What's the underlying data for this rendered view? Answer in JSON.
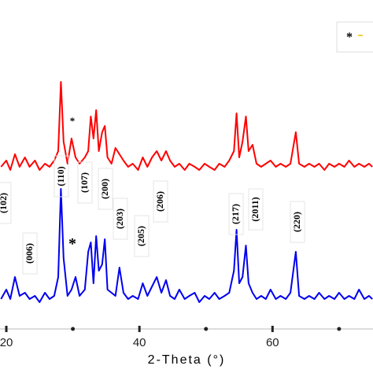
{
  "chart_data": {
    "type": "line",
    "x_label": "2-Theta (°)",
    "x": [
      19.2,
      20.0,
      20.6,
      21.3,
      22.0,
      22.8,
      23.5,
      24.3,
      25.0,
      25.8,
      26.5,
      27.2,
      27.8,
      28.2,
      28.6,
      29.2,
      29.8,
      30.4,
      31.0,
      31.8,
      32.3,
      32.7,
      33.1,
      33.5,
      33.9,
      34.4,
      34.8,
      35.2,
      35.8,
      36.4,
      37.0,
      37.6,
      38.3,
      39.0,
      39.8,
      40.5,
      41.2,
      41.9,
      42.6,
      43.3,
      44.0,
      44.6,
      45.3,
      46.0,
      46.8,
      47.5,
      48.3,
      49.0,
      49.8,
      50.5,
      51.3,
      52.0,
      52.8,
      53.5,
      54.2,
      54.6,
      55.0,
      55.5,
      56.0,
      56.4,
      57.0,
      57.6,
      58.3,
      59.0,
      59.7,
      60.5,
      61.2,
      62.0,
      62.7,
      63.5,
      64.0,
      64.8,
      65.5,
      66.3,
      67.0,
      67.8,
      68.5,
      69.3,
      70.0,
      70.8,
      71.5,
      72.3,
      73.0,
      73.8,
      74.5,
      75.0
    ],
    "series": [
      {
        "color": "#ff0000",
        "values": [
          47,
          49,
          46,
          51,
          47,
          50,
          47,
          49,
          46,
          48,
          47,
          49,
          52,
          74,
          55,
          48,
          56,
          50,
          48,
          50,
          52,
          63,
          56,
          65,
          52,
          58,
          60,
          50,
          48,
          53,
          51,
          49,
          47,
          48,
          46,
          50,
          47,
          50,
          52,
          49,
          52,
          49,
          47,
          48,
          46,
          48,
          47,
          46,
          48,
          47,
          46,
          48,
          47,
          49,
          52,
          64,
          50,
          55,
          63,
          52,
          54,
          48,
          47,
          48,
          49,
          47,
          48,
          47,
          48,
          58,
          48,
          47,
          48,
          47,
          48,
          46,
          48,
          47,
          48,
          47,
          49,
          47,
          48,
          47,
          48,
          47
        ]
      },
      {
        "color": "#0000ee",
        "values": [
          5,
          8,
          5,
          12,
          6,
          7,
          5,
          6,
          4,
          7,
          5,
          6,
          12,
          40,
          18,
          6,
          8,
          12,
          6,
          8,
          20,
          23,
          10,
          25,
          14,
          16,
          24,
          8,
          7,
          6,
          15,
          7,
          5,
          6,
          5,
          10,
          6,
          9,
          12,
          7,
          11,
          6,
          5,
          8,
          5,
          6,
          7,
          4,
          6,
          5,
          7,
          5,
          6,
          7,
          14,
          27,
          10,
          12,
          22,
          10,
          7,
          5,
          6,
          5,
          8,
          5,
          6,
          5,
          7,
          20,
          6,
          5,
          6,
          5,
          7,
          5,
          6,
          5,
          7,
          5,
          6,
          5,
          8,
          5,
          6,
          5
        ]
      }
    ],
    "xlim": [
      19.05,
      75.1
    ],
    "ylim": [
      0,
      100
    ],
    "xticks": [
      20,
      40,
      60
    ],
    "minor_xticks": [
      30,
      50,
      70
    ],
    "annotations": [
      "(102)",
      "(006)",
      "(110)",
      "(107)",
      "(200)",
      "(203)",
      "(205)",
      "(206)",
      "(217)",
      "(2011)",
      "(220)"
    ],
    "markers": [
      "*",
      "*"
    ],
    "legend": [
      "*"
    ]
  }
}
